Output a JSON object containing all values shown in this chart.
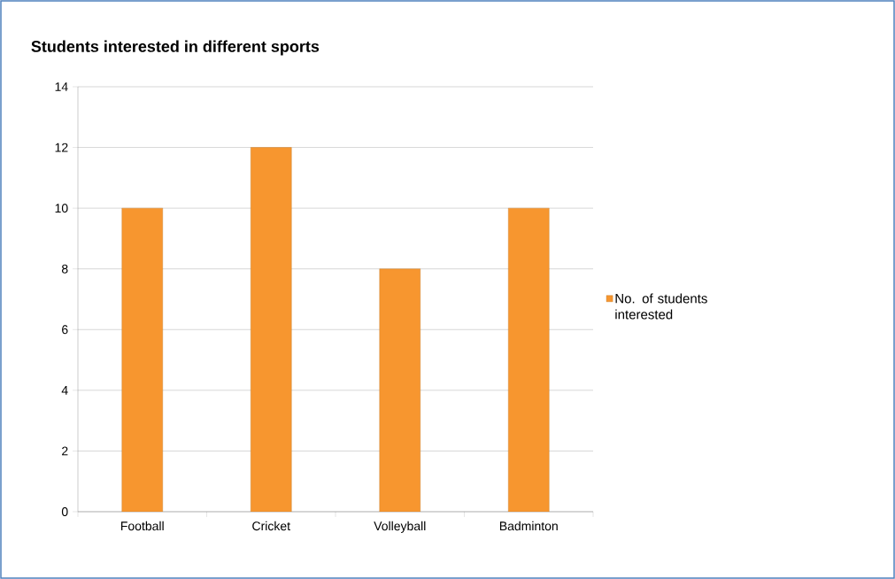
{
  "chart_data": {
    "type": "bar",
    "title": "Students interested in different sports",
    "categories": [
      "Football",
      "Cricket",
      "Volleyball",
      "Badminton"
    ],
    "series": [
      {
        "name": "No. of students interested",
        "color": "#f7962f",
        "values": [
          10,
          12,
          8,
          10
        ]
      }
    ],
    "ylim": [
      0,
      14
    ],
    "yticks": [
      0,
      2,
      4,
      6,
      8,
      10,
      12,
      14
    ],
    "grid": "y",
    "legend": "right"
  }
}
